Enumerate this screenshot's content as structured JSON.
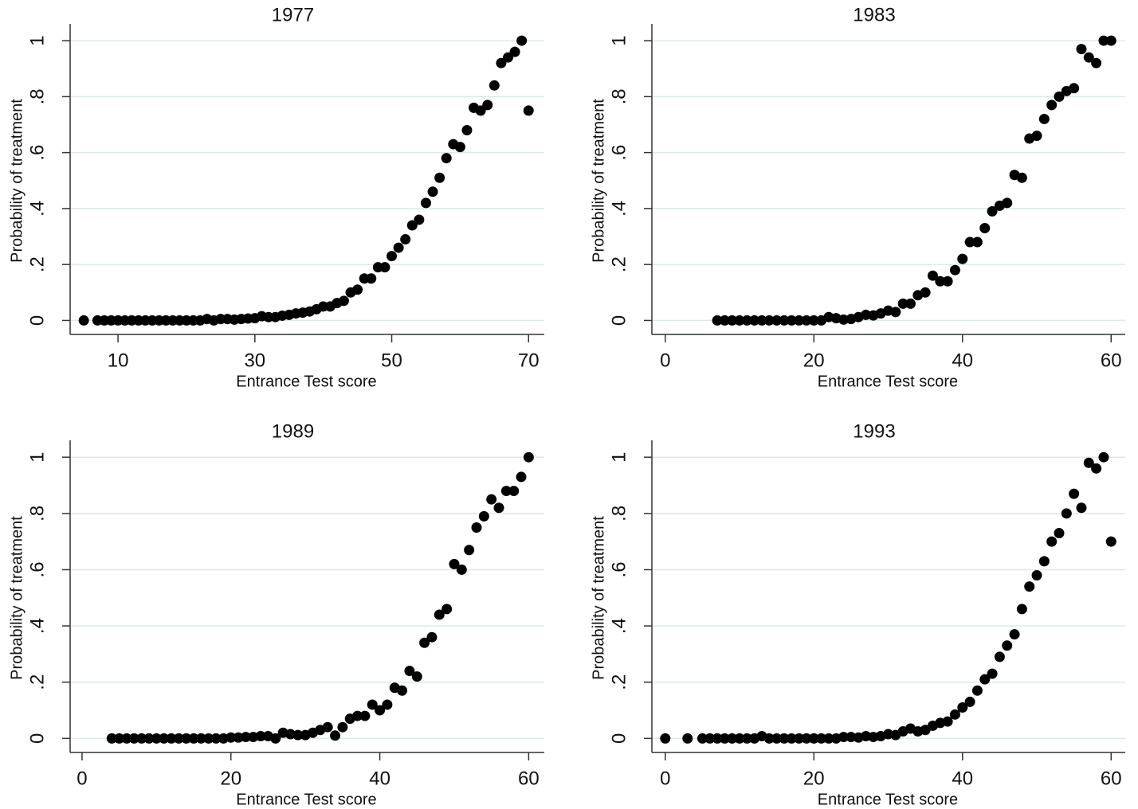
{
  "chart_data": [
    {
      "type": "scatter",
      "title": "1977",
      "x_label": "Entrance Test score",
      "y_label": "Probability of treatment",
      "color": "#000000",
      "grid": true,
      "xlim": [
        3,
        72.3
      ],
      "xticks": [
        10,
        30,
        50,
        70
      ],
      "ylim": [
        -0.05,
        1.06
      ],
      "yticks": [
        0,
        {
          "value": 0.2,
          "label": ".2"
        },
        {
          "value": 0.4,
          "label": ".4"
        },
        {
          "value": 0.6,
          "label": ".6"
        },
        {
          "value": 0.8,
          "label": ".8"
        },
        1
      ],
      "x": [
        5,
        7,
        8,
        9,
        10,
        11,
        12,
        13,
        14,
        15,
        16,
        17,
        18,
        19,
        20,
        21,
        22,
        23,
        24,
        25,
        26,
        27,
        28,
        29,
        30,
        31,
        32,
        33,
        34,
        35,
        36,
        37,
        38,
        39,
        40,
        41,
        42,
        43,
        44,
        45,
        46,
        47,
        48,
        49,
        50,
        51,
        52,
        53,
        54,
        55,
        56,
        57,
        58,
        59,
        60,
        61,
        62,
        63,
        64,
        65,
        66,
        67,
        68,
        69,
        70
      ],
      "y": [
        0,
        0,
        0,
        0,
        0,
        0,
        0,
        0,
        0,
        0,
        0,
        0,
        0,
        0,
        0,
        0,
        0,
        0.005,
        0,
        0.005,
        0.005,
        0.003,
        0.005,
        0.007,
        0.008,
        0.015,
        0.012,
        0.012,
        0.017,
        0.02,
        0.025,
        0.028,
        0.032,
        0.04,
        0.05,
        0.05,
        0.062,
        0.07,
        0.1,
        0.11,
        0.15,
        0.15,
        0.19,
        0.19,
        0.23,
        0.26,
        0.29,
        0.34,
        0.36,
        0.42,
        0.46,
        0.51,
        0.58,
        0.63,
        0.62,
        0.68,
        0.76,
        0.75,
        0.77,
        0.84,
        0.92,
        0.94,
        0.96,
        1,
        0.75
      ]
    },
    {
      "type": "scatter",
      "title": "1983",
      "x_label": "Entrance Test score",
      "y_label": "Probability of treatment",
      "color": "#000000",
      "grid": true,
      "xlim": [
        -1.8,
        61.9
      ],
      "xticks": [
        0,
        20,
        40,
        60
      ],
      "ylim": [
        -0.05,
        1.06
      ],
      "yticks": [
        0,
        {
          "value": 0.2,
          "label": ".2"
        },
        {
          "value": 0.4,
          "label": ".4"
        },
        {
          "value": 0.6,
          "label": ".6"
        },
        {
          "value": 0.8,
          "label": ".8"
        },
        1
      ],
      "x": [
        7,
        8,
        9,
        10,
        11,
        12,
        13,
        14,
        15,
        16,
        17,
        18,
        19,
        20,
        21,
        22,
        23,
        24,
        25,
        26,
        27,
        28,
        29,
        30,
        31,
        32,
        33,
        34,
        35,
        36,
        37,
        38,
        39,
        40,
        41,
        42,
        43,
        44,
        45,
        46,
        47,
        48,
        49,
        50,
        51,
        52,
        53,
        54,
        55,
        56,
        57,
        58,
        59,
        60
      ],
      "y": [
        0,
        0,
        0,
        0,
        0,
        0,
        0,
        0,
        0,
        0,
        0,
        0,
        0,
        0,
        0,
        0.012,
        0.008,
        0.003,
        0.005,
        0.012,
        0.02,
        0.018,
        0.025,
        0.035,
        0.03,
        0.06,
        0.06,
        0.09,
        0.1,
        0.16,
        0.14,
        0.14,
        0.18,
        0.22,
        0.28,
        0.28,
        0.33,
        0.39,
        0.41,
        0.42,
        0.52,
        0.51,
        0.65,
        0.66,
        0.72,
        0.77,
        0.8,
        0.82,
        0.83,
        0.97,
        0.94,
        0.92,
        1,
        1
      ]
    },
    {
      "type": "scatter",
      "title": "1989",
      "x_label": "Entrance Test score",
      "y_label": "Probability of treatment",
      "color": "#000000",
      "grid": true,
      "xlim": [
        -1.6,
        62.1
      ],
      "xticks": [
        0,
        20,
        40,
        60
      ],
      "ylim": [
        -0.05,
        1.06
      ],
      "yticks": [
        0,
        {
          "value": 0.2,
          "label": ".2"
        },
        {
          "value": 0.4,
          "label": ".4"
        },
        {
          "value": 0.6,
          "label": ".6"
        },
        {
          "value": 0.8,
          "label": ".8"
        },
        1
      ],
      "x": [
        4,
        5,
        6,
        7,
        8,
        9,
        10,
        11,
        12,
        13,
        14,
        15,
        16,
        17,
        18,
        19,
        20,
        21,
        22,
        23,
        24,
        25,
        26,
        27,
        28,
        29,
        30,
        31,
        32,
        33,
        34,
        35,
        36,
        37,
        38,
        39,
        40,
        41,
        42,
        43,
        44,
        45,
        46,
        47,
        48,
        49,
        50,
        51,
        52,
        53,
        54,
        55,
        56,
        57,
        58,
        59,
        60
      ],
      "y": [
        0,
        0,
        0,
        0,
        0,
        0,
        0,
        0,
        0,
        0,
        0,
        0,
        0,
        0,
        0,
        0,
        0.003,
        0.003,
        0.005,
        0.005,
        0.008,
        0.008,
        0,
        0.02,
        0.015,
        0.012,
        0.012,
        0.02,
        0.03,
        0.04,
        0.01,
        0.04,
        0.07,
        0.08,
        0.08,
        0.12,
        0.1,
        0.12,
        0.18,
        0.17,
        0.24,
        0.22,
        0.34,
        0.36,
        0.44,
        0.46,
        0.62,
        0.6,
        0.67,
        0.75,
        0.79,
        0.85,
        0.82,
        0.88,
        0.88,
        0.93,
        1
      ]
    },
    {
      "type": "scatter",
      "title": "1993",
      "x_label": "Entrance Test score",
      "y_label": "Probability of treatment",
      "color": "#000000",
      "grid": true,
      "xlim": [
        -1.8,
        61.9
      ],
      "xticks": [
        0,
        20,
        40,
        60
      ],
      "ylim": [
        -0.05,
        1.06
      ],
      "yticks": [
        0,
        {
          "value": 0.2,
          "label": ".2"
        },
        {
          "value": 0.4,
          "label": ".4"
        },
        {
          "value": 0.6,
          "label": ".6"
        },
        {
          "value": 0.8,
          "label": ".8"
        },
        1
      ],
      "x": [
        0,
        3,
        5,
        6,
        7,
        8,
        9,
        10,
        11,
        12,
        13,
        14,
        15,
        16,
        17,
        18,
        19,
        20,
        21,
        22,
        23,
        24,
        25,
        26,
        27,
        28,
        29,
        30,
        31,
        32,
        33,
        34,
        35,
        36,
        37,
        38,
        39,
        40,
        41,
        42,
        43,
        44,
        45,
        46,
        47,
        48,
        49,
        50,
        51,
        52,
        53,
        54,
        55,
        56,
        57,
        58,
        59,
        60
      ],
      "y": [
        0,
        0,
        0,
        0,
        0,
        0,
        0,
        0,
        0,
        0,
        0.008,
        0,
        0,
        0,
        0,
        0,
        0,
        0,
        0,
        0,
        0,
        0.005,
        0.005,
        0.003,
        0.008,
        0.005,
        0.008,
        0.015,
        0.012,
        0.025,
        0.035,
        0.025,
        0.03,
        0.045,
        0.055,
        0.06,
        0.085,
        0.11,
        0.13,
        0.17,
        0.21,
        0.23,
        0.29,
        0.33,
        0.37,
        0.46,
        0.54,
        0.58,
        0.63,
        0.7,
        0.73,
        0.8,
        0.87,
        0.82,
        0.98,
        0.96,
        1,
        0.7
      ]
    }
  ]
}
